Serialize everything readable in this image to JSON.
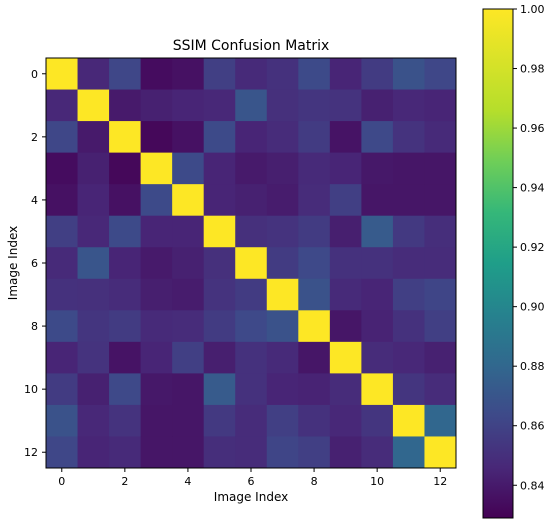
{
  "chart_data": {
    "type": "heatmap",
    "title": "SSIM Confusion Matrix",
    "xlabel": "Image Index",
    "ylabel": "Image Index",
    "x_ticks": [
      0,
      2,
      4,
      6,
      8,
      10,
      12
    ],
    "y_ticks": [
      0,
      2,
      4,
      6,
      8,
      10,
      12
    ],
    "colormap": "viridis",
    "colorbar": {
      "range": [
        0.829,
        1.0
      ],
      "ticks": [
        "0.84",
        "0.86",
        "0.88",
        "0.90",
        "0.92",
        "0.94",
        "0.96",
        "0.98",
        "1.00"
      ],
      "tick_values": [
        0.84,
        0.86,
        0.88,
        0.9,
        0.92,
        0.94,
        0.96,
        0.98,
        1.0
      ]
    },
    "matrix": [
      [
        1.0,
        0.846,
        0.862,
        0.834,
        0.836,
        0.858,
        0.847,
        0.851,
        0.864,
        0.845,
        0.856,
        0.868,
        0.862
      ],
      [
        0.846,
        1.0,
        0.84,
        0.843,
        0.845,
        0.846,
        0.87,
        0.85,
        0.853,
        0.852,
        0.843,
        0.846,
        0.845
      ],
      [
        0.862,
        0.84,
        1.0,
        0.832,
        0.836,
        0.864,
        0.845,
        0.848,
        0.856,
        0.837,
        0.863,
        0.852,
        0.847
      ],
      [
        0.834,
        0.843,
        0.832,
        1.0,
        0.864,
        0.845,
        0.84,
        0.842,
        0.847,
        0.845,
        0.839,
        0.838,
        0.838
      ],
      [
        0.836,
        0.845,
        0.836,
        0.864,
        1.0,
        0.845,
        0.843,
        0.841,
        0.848,
        0.858,
        0.838,
        0.838,
        0.838
      ],
      [
        0.858,
        0.846,
        0.864,
        0.845,
        0.845,
        1.0,
        0.85,
        0.852,
        0.856,
        0.842,
        0.873,
        0.855,
        0.849
      ],
      [
        0.847,
        0.87,
        0.845,
        0.84,
        0.843,
        0.85,
        1.0,
        0.856,
        0.863,
        0.851,
        0.851,
        0.848,
        0.848
      ],
      [
        0.851,
        0.85,
        0.848,
        0.842,
        0.841,
        0.852,
        0.856,
        1.0,
        0.868,
        0.847,
        0.845,
        0.858,
        0.861
      ],
      [
        0.864,
        0.853,
        0.856,
        0.847,
        0.848,
        0.856,
        0.863,
        0.868,
        1.0,
        0.838,
        0.844,
        0.851,
        0.858
      ],
      [
        0.845,
        0.852,
        0.837,
        0.845,
        0.858,
        0.842,
        0.851,
        0.847,
        0.838,
        1.0,
        0.848,
        0.846,
        0.843
      ],
      [
        0.856,
        0.843,
        0.863,
        0.839,
        0.838,
        0.873,
        0.851,
        0.845,
        0.844,
        0.848,
        1.0,
        0.853,
        0.848
      ],
      [
        0.868,
        0.846,
        0.852,
        0.838,
        0.838,
        0.855,
        0.848,
        0.858,
        0.851,
        0.846,
        0.853,
        1.0,
        0.88
      ],
      [
        0.862,
        0.845,
        0.847,
        0.838,
        0.838,
        0.849,
        0.848,
        0.861,
        0.858,
        0.843,
        0.848,
        0.88,
        1.0
      ]
    ]
  }
}
